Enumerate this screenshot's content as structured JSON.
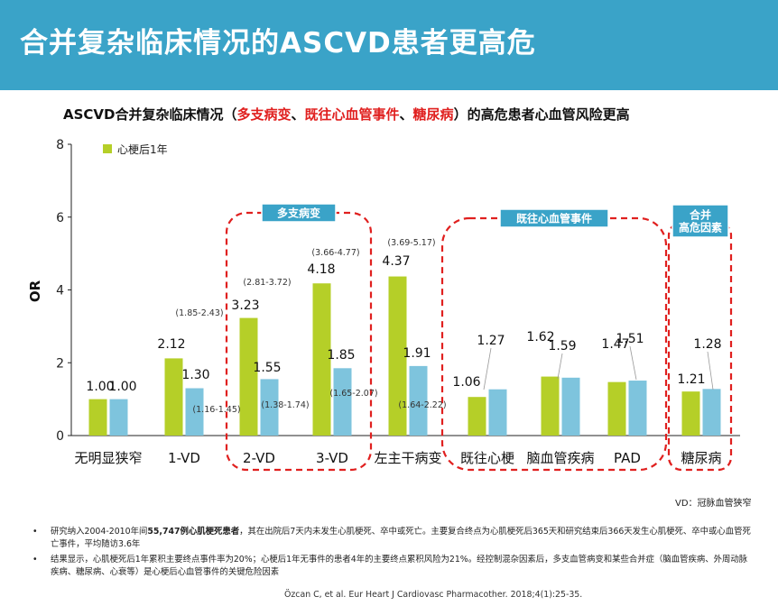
{
  "title": "合并复杂临床情况的ASCVD患者更高危",
  "subtitle": {
    "prefix": "ASCVD合并复杂临床情况（",
    "red1": "多支病变",
    "sep1": "、",
    "red2": "既往心血管事件",
    "sep2": "、",
    "red3": "糖尿病",
    "suffix": "）的高危患者心血管风险更高"
  },
  "chart_data": {
    "type": "bar",
    "ylabel": "OR",
    "ylim": [
      0,
      8
    ],
    "yticks": [
      "0",
      "2",
      "4",
      "6",
      "8"
    ],
    "legend": "心梗后1年",
    "legend_position": "top-left",
    "categories": [
      "无明显狭窄",
      "1-VD",
      "2-VD",
      "3-VD",
      "左主干病变",
      "既往心梗",
      "脑血管疾病",
      "PAD",
      "糖尿病"
    ],
    "series": [
      {
        "name": "心梗后1年",
        "color": "#b5cf28",
        "values": [
          1.0,
          2.12,
          3.23,
          4.18,
          4.37,
          1.06,
          1.62,
          1.47,
          1.21
        ],
        "labels": [
          "1.00",
          "2.12",
          "3.23",
          "4.18",
          "4.37",
          "1.06",
          "1.62",
          "1.47",
          "1.21"
        ]
      },
      {
        "name": "",
        "color": "#7ec4dd",
        "values": [
          1.0,
          1.3,
          1.55,
          1.85,
          1.91,
          1.27,
          1.59,
          1.51,
          1.28
        ],
        "labels": [
          "1.00",
          "1.30",
          "1.55",
          "1.85",
          "1.91",
          "1.27",
          "1.59",
          "1.51",
          "1.28"
        ]
      }
    ],
    "ci_labels": [
      "(1.85-2.43)",
      "(2.81-3.72)",
      "(3.66-4.77)",
      "(3.69-5.17)",
      "(1.16-1.45)",
      "(1.38-1.74)",
      "(1.65-2.07)",
      "(1.64-2.22)"
    ],
    "groups": [
      {
        "label": "多支病变",
        "color": "#e0201f"
      },
      {
        "label": "既往心血管事件",
        "color": "#e0201f"
      },
      {
        "label": "合并\n高危因素",
        "color": "#e0201f"
      }
    ],
    "group_label_bg": "#3aa3c8"
  },
  "vd_note": "VD：冠脉血管狭窄",
  "notes": [
    {
      "bullet": "•",
      "pre": "研究纳入2004-2010年间",
      "bold": "55,747例心肌梗死患者",
      "post": "，其在出院后7天内未发生心肌梗死、卒中或死亡。主要复合终点为心肌梗死后365天和研究结束后366天发生心肌梗死、卒中或心血管死亡事件，平均随访3.6年"
    },
    {
      "bullet": "•",
      "pre": "结果显示，心肌梗死后1年累积主要终点事件率为20%；心梗后1年无事件的患者4年的主要终点累积风险为21%。经控制混杂因素后，多支血管病变和某些合并症（脑血管疾病、外周动脉疾病、糖尿病、心衰等）是心梗后心血管事件的关键危险因素",
      "bold": "",
      "post": ""
    }
  ],
  "reference": "Özcan C, et al. Eur Heart J Cardiovasc Pharmacother. 2018;4(1):25-35."
}
